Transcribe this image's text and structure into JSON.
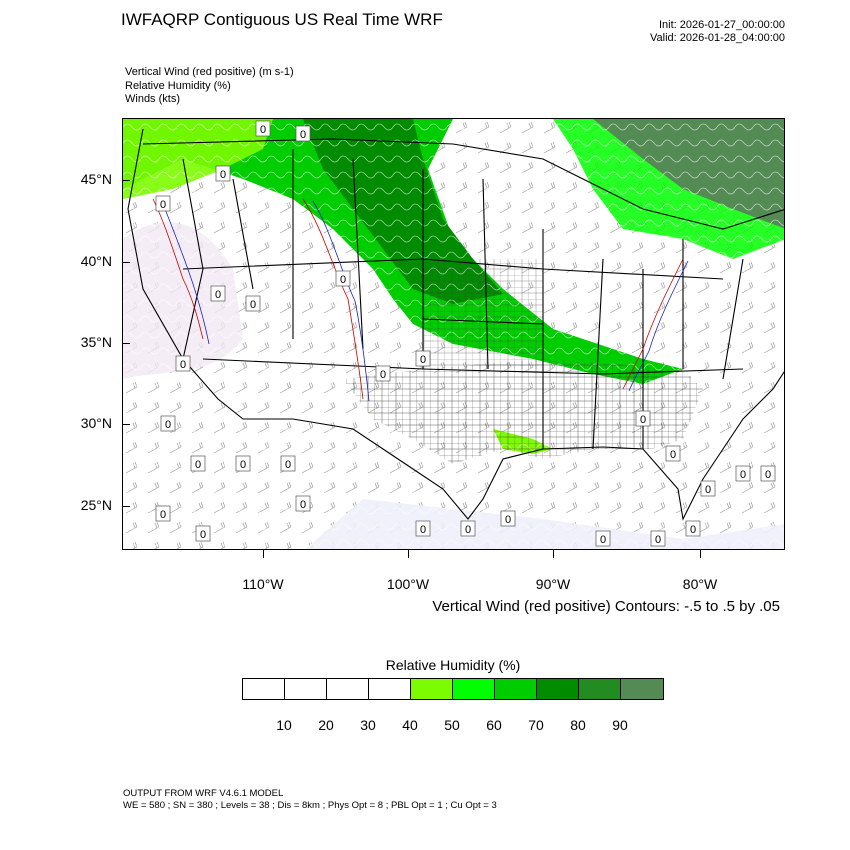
{
  "header": {
    "title": "IWFAQRP Contiguous US Real Time WRF",
    "init": "Init: 2026-01-27_00:00:00",
    "valid": "Valid: 2026-01-28_04:00:00"
  },
  "fields": [
    "Vertical Wind (red positive)   (m s-1)",
    "Relative Humidity   (%)",
    "Winds   (kts)"
  ],
  "map": {
    "lat_labels": [
      "45°N",
      "40°N",
      "35°N",
      "30°N",
      "25°N"
    ],
    "lon_labels": [
      "110°W",
      "100°W",
      "90°W",
      "80°W"
    ],
    "contour_value_label": "0",
    "contour_note": "Vertical Wind (red positive) Contours: -.5 to .5 by .05"
  },
  "colorbar": {
    "title": "Relative Humidity  (%)",
    "colors": [
      "#ffffff",
      "#ffffff",
      "#ffffff",
      "#ffffff",
      "#7cfc00",
      "#00ff00",
      "#00cd00",
      "#008b00",
      "#228b22",
      "#548b54"
    ],
    "labels": [
      "10",
      "20",
      "30",
      "40",
      "50",
      "60",
      "70",
      "80",
      "90"
    ]
  },
  "footer": {
    "line1": "OUTPUT FROM WRF V4.6.1 MODEL",
    "line2": "WE = 580 ; SN = 380 ; Levels = 38 ; Dis = 8km ; Phys Opt = 8 ; PBL Opt = 1 ; Cu Opt = 3"
  }
}
